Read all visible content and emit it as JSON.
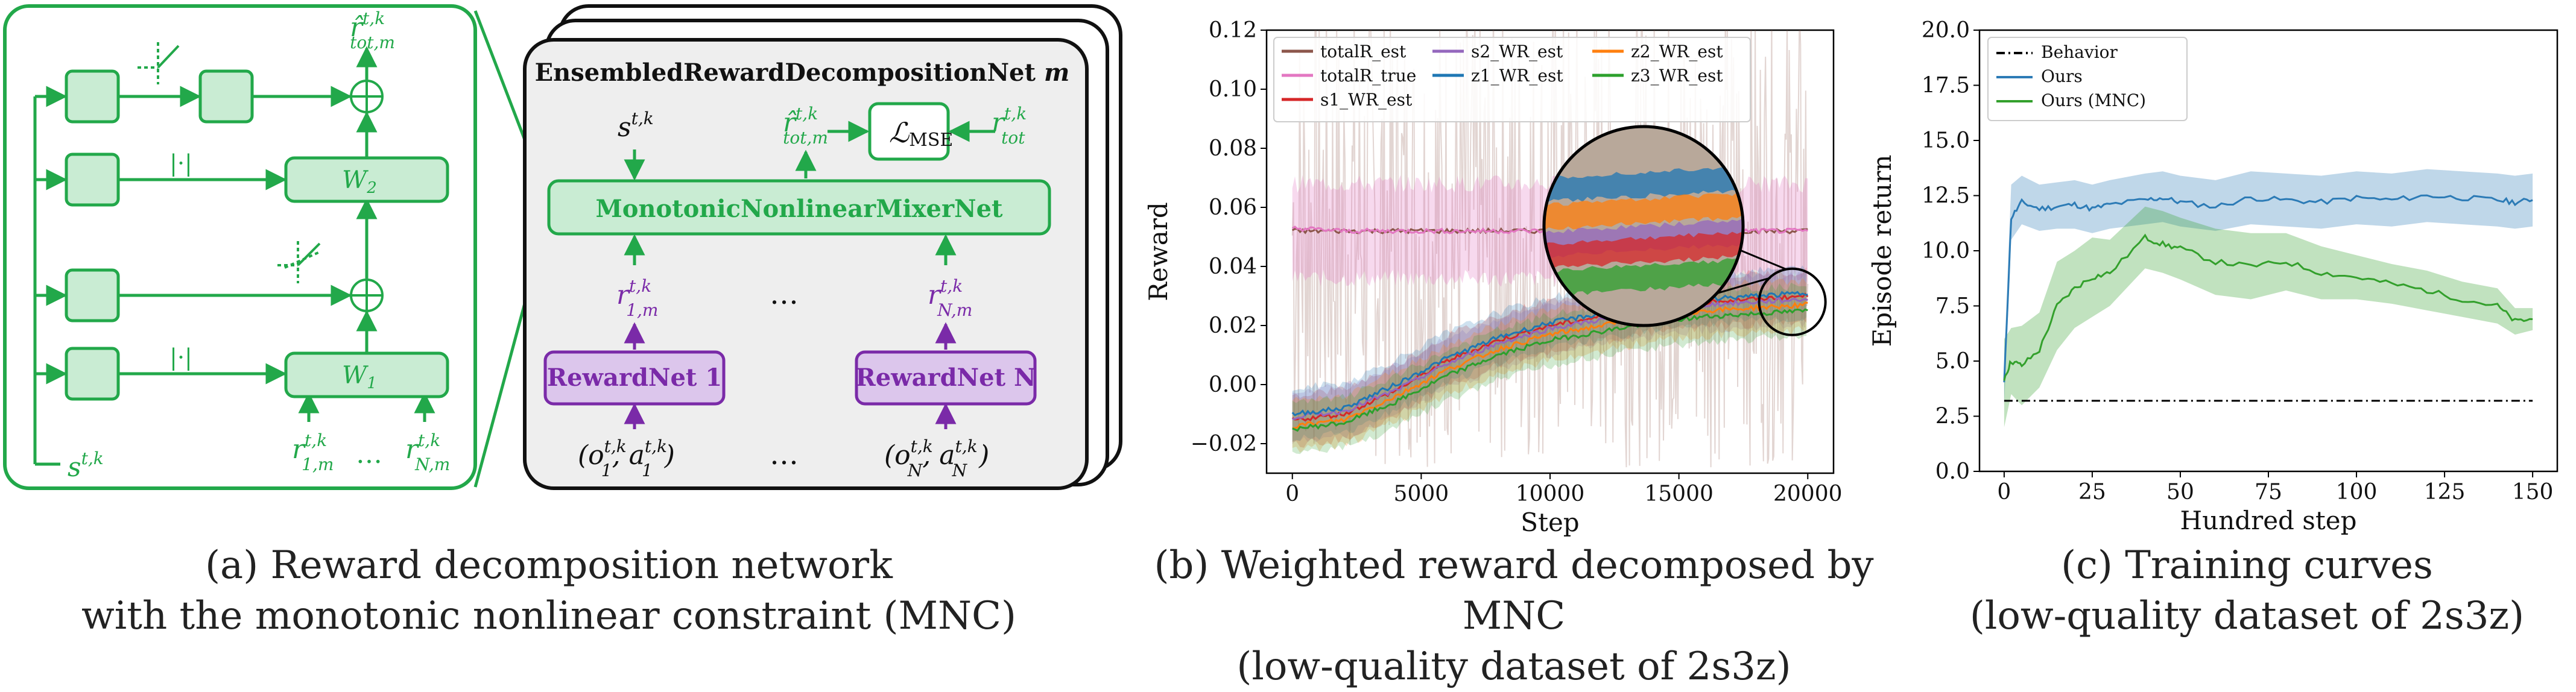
{
  "colors": {
    "green": "#22a84a",
    "green_fill": "#c9ecd3",
    "purple": "#7a2aa8",
    "purple_fill": "#dcc6ec",
    "gray_fill": "#eeeeee",
    "blue": "#2c7bb6",
    "mnc_green": "#33a02c",
    "behavior": "#000000"
  },
  "panel_a": {
    "caption_line1": "(a) Reward decomposition network",
    "caption_line2": "with the monotonic nonlinear constraint (MNC)",
    "abs_label_top": "|·|",
    "abs_label_bottom": "|·|",
    "w2_label": "W",
    "w2_sub": "2",
    "w1_label": "W",
    "w1_sub": "1",
    "state_input": "s",
    "state_sup": "t,k",
    "output_label": "r̂",
    "output_sup": "t,k",
    "output_sub": "tot,m",
    "in_r1": "r",
    "in_r1_sup": "t,k",
    "in_r1_sub": "1,m",
    "in_rN": "r",
    "in_rN_sup": "t,k",
    "in_rN_sub": "N,m",
    "in_dots": "…",
    "net_title": "EnsembledRewardDecompositionNet",
    "net_title_m": "m",
    "mixer_label": "MonotonicNonlinearMixerNet",
    "loss_label": "ℒ",
    "loss_sub": "MSE",
    "target_r": "r",
    "target_sup": "t,k",
    "target_sub": "tot",
    "rewardnet1": "RewardNet 1",
    "rewardnetN": "RewardNet N",
    "obs1": "(o",
    "obs1_sup": "t,k",
    "obs1_sub": "1",
    "act1": ", a",
    "act1_sup": "t,k",
    "act1_sub": "1",
    "obsN": "(o",
    "obsN_sup": "t,k",
    "obsN_sub": "N",
    "actN": ", a",
    "actN_sup": "t,k",
    "actN_sub": "N",
    "dots": "…"
  },
  "panel_b": {
    "caption_line1": "(b) Weighted reward decomposed by MNC",
    "caption_line2": "(low-quality dataset of 2s3z)"
  },
  "panel_c": {
    "caption_line1": "(c) Training curves",
    "caption_line2": "(low-quality dataset of 2s3z)"
  },
  "chart_data": [
    {
      "type": "line",
      "xlabel": "Step",
      "ylabel": "Reward",
      "xlim": [
        -1000,
        21000
      ],
      "ylim": [
        -0.03,
        0.12
      ],
      "xticks": [
        0,
        5000,
        10000,
        15000,
        20000
      ],
      "yticks": [
        -0.02,
        0.0,
        0.02,
        0.04,
        0.06,
        0.08,
        0.1,
        0.12
      ],
      "ytick_labels": [
        "−0.02",
        "0.00",
        "0.02",
        "0.04",
        "0.06",
        "0.08",
        "0.10",
        "0.12"
      ],
      "legend": [
        "totalR_est",
        "totalR_true",
        "s1_WR_est",
        "s2_WR_est",
        "z1_WR_est",
        "z2_WR_est",
        "z3_WR_est"
      ],
      "x": [
        0,
        2000,
        4000,
        6000,
        8000,
        10000,
        12000,
        14000,
        16000,
        18000,
        20000
      ],
      "series": [
        {
          "name": "totalR_est",
          "color": "#8c564b",
          "values": [
            0.052,
            0.052,
            0.052,
            0.052,
            0.052,
            0.052,
            0.052,
            0.052,
            0.052,
            0.052,
            0.052
          ]
        },
        {
          "name": "totalR_true",
          "color": "#e377c2",
          "values": [
            0.053,
            0.052,
            0.052,
            0.052,
            0.052,
            0.052,
            0.052,
            0.052,
            0.052,
            0.052,
            0.052
          ]
        },
        {
          "name": "s1_WR_est",
          "color": "#d62728",
          "values": [
            -0.012,
            -0.01,
            -0.002,
            0.008,
            0.015,
            0.02,
            0.023,
            0.026,
            0.028,
            0.029,
            0.03
          ]
        },
        {
          "name": "s2_WR_est",
          "color": "#9467bd",
          "values": [
            -0.011,
            -0.009,
            -0.002,
            0.007,
            0.014,
            0.019,
            0.022,
            0.025,
            0.027,
            0.028,
            0.029
          ]
        },
        {
          "name": "z1_WR_est",
          "color": "#1f77b4",
          "values": [
            -0.01,
            -0.008,
            0.0,
            0.009,
            0.016,
            0.021,
            0.024,
            0.027,
            0.029,
            0.03,
            0.031
          ]
        },
        {
          "name": "z2_WR_est",
          "color": "#ff7f0e",
          "values": [
            -0.014,
            -0.012,
            -0.004,
            0.005,
            0.012,
            0.017,
            0.02,
            0.023,
            0.025,
            0.026,
            0.027
          ]
        },
        {
          "name": "z3_WR_est",
          "color": "#2ca02c",
          "values": [
            -0.015,
            -0.013,
            -0.006,
            0.003,
            0.01,
            0.015,
            0.018,
            0.021,
            0.023,
            0.024,
            0.025
          ]
        }
      ]
    },
    {
      "type": "line",
      "xlabel": "Hundred step",
      "ylabel": "Episode return",
      "xlim": [
        -7,
        157
      ],
      "ylim": [
        0.0,
        20.0
      ],
      "xticks": [
        0,
        25,
        50,
        75,
        100,
        125,
        150
      ],
      "yticks": [
        0.0,
        2.5,
        5.0,
        7.5,
        10.0,
        12.5,
        15.0,
        17.5,
        20.0
      ],
      "legend": [
        "Behavior",
        "Ours",
        "Ours (MNC)"
      ],
      "x": [
        0,
        2,
        5,
        10,
        15,
        20,
        25,
        30,
        40,
        45,
        50,
        60,
        70,
        80,
        90,
        100,
        110,
        120,
        130,
        140,
        145,
        150
      ],
      "series": [
        {
          "name": "Behavior",
          "color": "#000000",
          "values": [
            3.2,
            3.2,
            3.2,
            3.2,
            3.2,
            3.2,
            3.2,
            3.2,
            3.2,
            3.2,
            3.2,
            3.2,
            3.2,
            3.2,
            3.2,
            3.2,
            3.2,
            3.2,
            3.2,
            3.2,
            3.2,
            3.2
          ]
        },
        {
          "name": "Ours",
          "color": "#2c7bb6",
          "values": [
            4.0,
            11.5,
            12.2,
            11.9,
            12.0,
            12.1,
            11.9,
            12.1,
            12.3,
            12.4,
            12.2,
            12.0,
            12.4,
            12.3,
            12.2,
            12.4,
            12.3,
            12.5,
            12.4,
            12.3,
            12.2,
            12.3
          ]
        },
        {
          "name": "Ours (MNC)",
          "color": "#33a02c",
          "values": [
            4.2,
            5.0,
            4.8,
            5.5,
            7.5,
            8.3,
            8.8,
            9.0,
            10.6,
            10.3,
            10.1,
            9.5,
            9.3,
            9.5,
            9.0,
            8.8,
            8.5,
            8.2,
            7.8,
            7.5,
            6.8,
            6.9
          ]
        }
      ],
      "bands": [
        {
          "name": "Ours",
          "lower": [
            3.0,
            10.5,
            11.2,
            10.9,
            11.0,
            11.0,
            10.8,
            11.0,
            11.2,
            11.3,
            11.1,
            10.9,
            11.2,
            11.1,
            11.0,
            11.2,
            11.1,
            11.3,
            11.2,
            11.1,
            11.0,
            11.1
          ],
          "upper": [
            5.0,
            13.0,
            13.4,
            13.0,
            13.1,
            13.2,
            13.0,
            13.2,
            13.5,
            13.6,
            13.4,
            13.2,
            13.6,
            13.5,
            13.4,
            13.6,
            13.5,
            13.7,
            13.6,
            13.5,
            13.4,
            13.5
          ]
        },
        {
          "name": "Ours (MNC)",
          "lower": [
            2.0,
            3.5,
            3.0,
            3.8,
            5.5,
            6.5,
            7.0,
            7.5,
            9.2,
            9.0,
            8.7,
            8.0,
            7.8,
            8.2,
            7.8,
            7.8,
            7.6,
            7.3,
            7.0,
            6.7,
            6.2,
            6.4
          ],
          "upper": [
            6.0,
            6.5,
            6.6,
            7.2,
            9.5,
            10.0,
            10.6,
            10.5,
            12.0,
            11.8,
            11.5,
            11.0,
            10.8,
            10.8,
            10.2,
            9.8,
            9.4,
            9.1,
            8.6,
            8.3,
            7.4,
            7.4
          ]
        }
      ]
    }
  ]
}
